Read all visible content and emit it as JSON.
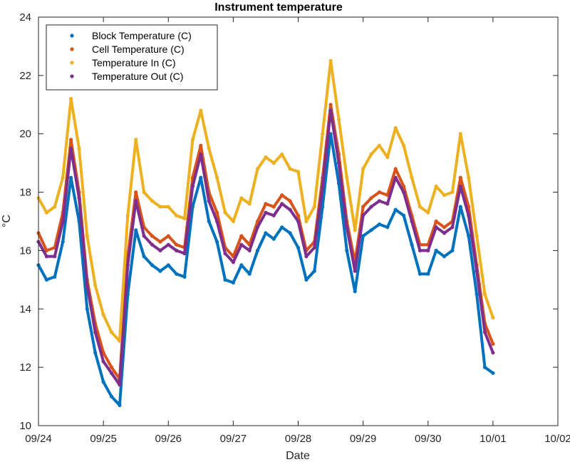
{
  "chart_data": {
    "type": "line",
    "title": "Instrument temperature",
    "xlabel": "Date",
    "ylabel": "°C",
    "xlim": [
      "09/24",
      "10/02"
    ],
    "ylim": [
      10,
      24
    ],
    "x_ticks": [
      "09/24",
      "09/25",
      "09/26",
      "09/27",
      "09/28",
      "09/29",
      "09/30",
      "10/01",
      "10/02"
    ],
    "y_ticks": [
      10,
      12,
      14,
      16,
      18,
      20,
      22,
      24
    ],
    "grid": false,
    "legend_position": "top-left",
    "x": [
      "09/24 00:00",
      "09/24 03:00",
      "09/24 06:00",
      "09/24 09:00",
      "09/24 12:00",
      "09/24 15:00",
      "09/24 18:00",
      "09/24 21:00",
      "09/25 00:00",
      "09/25 03:00",
      "09/25 06:00",
      "09/25 09:00",
      "09/25 12:00",
      "09/25 15:00",
      "09/25 18:00",
      "09/25 21:00",
      "09/26 00:00",
      "09/26 03:00",
      "09/26 06:00",
      "09/26 09:00",
      "09/26 12:00",
      "09/26 15:00",
      "09/26 18:00",
      "09/26 21:00",
      "09/27 00:00",
      "09/27 03:00",
      "09/27 06:00",
      "09/27 09:00",
      "09/27 12:00",
      "09/27 15:00",
      "09/27 18:00",
      "09/27 21:00",
      "09/28 00:00",
      "09/28 03:00",
      "09/28 06:00",
      "09/28 09:00",
      "09/28 12:00",
      "09/28 15:00",
      "09/28 18:00",
      "09/28 21:00",
      "09/29 00:00",
      "09/29 03:00",
      "09/29 06:00",
      "09/29 09:00",
      "09/29 12:00",
      "09/29 15:00",
      "09/29 18:00",
      "09/29 21:00",
      "09/30 00:00",
      "09/30 03:00",
      "09/30 06:00",
      "09/30 09:00",
      "09/30 12:00",
      "09/30 15:00",
      "09/30 18:00",
      "09/30 21:00",
      "10/01 00:00"
    ],
    "series": [
      {
        "name": "Block Temperature (C)",
        "color": "#0072BD",
        "values": [
          15.5,
          15.0,
          15.1,
          16.3,
          18.5,
          17.0,
          14.0,
          12.5,
          11.5,
          11.0,
          10.7,
          14.5,
          16.7,
          15.8,
          15.5,
          15.3,
          15.5,
          15.2,
          15.1,
          17.5,
          18.5,
          17.0,
          16.3,
          15.0,
          14.9,
          15.5,
          15.2,
          16.0,
          16.6,
          16.4,
          16.8,
          16.6,
          16.1,
          15.0,
          15.3,
          17.5,
          20.0,
          18.3,
          16.0,
          14.6,
          16.5,
          16.7,
          16.9,
          16.8,
          17.4,
          17.2,
          16.2,
          15.2,
          15.2,
          16.0,
          15.8,
          16.0,
          17.5,
          16.5,
          14.5,
          12.0,
          11.8
        ]
      },
      {
        "name": "Cell Temperature (C)",
        "color": "#D95319",
        "values": [
          16.6,
          16.0,
          16.1,
          17.3,
          19.8,
          18.0,
          15.0,
          13.5,
          12.5,
          12.0,
          11.6,
          15.8,
          18.0,
          16.8,
          16.5,
          16.3,
          16.5,
          16.2,
          16.1,
          18.5,
          19.6,
          18.0,
          17.3,
          16.1,
          15.8,
          16.5,
          16.2,
          17.0,
          17.6,
          17.5,
          17.9,
          17.7,
          17.2,
          16.0,
          16.3,
          18.5,
          21.0,
          19.3,
          17.0,
          15.6,
          17.5,
          17.8,
          18.0,
          17.9,
          18.8,
          18.2,
          17.2,
          16.2,
          16.2,
          17.0,
          16.8,
          17.0,
          18.5,
          17.5,
          15.5,
          13.5,
          12.8
        ]
      },
      {
        "name": "Temperature In (C)",
        "color": "#EDB120",
        "values": [
          17.8,
          17.3,
          17.5,
          18.5,
          21.2,
          19.5,
          16.5,
          14.8,
          13.8,
          13.2,
          12.9,
          17.2,
          19.8,
          18.0,
          17.7,
          17.5,
          17.5,
          17.2,
          17.1,
          19.8,
          20.8,
          19.5,
          18.5,
          17.3,
          17.0,
          17.8,
          17.6,
          18.8,
          19.2,
          19.0,
          19.3,
          18.8,
          18.7,
          17.0,
          17.5,
          20.0,
          22.5,
          20.5,
          18.5,
          16.7,
          18.8,
          19.3,
          19.6,
          19.2,
          20.2,
          19.6,
          18.5,
          17.5,
          17.3,
          18.2,
          17.9,
          18.0,
          20.0,
          18.5,
          16.5,
          14.5,
          13.7
        ]
      },
      {
        "name": "Temperature Out (C)",
        "color": "#7E2F8E",
        "values": [
          16.3,
          15.8,
          15.8,
          17.0,
          19.5,
          17.8,
          14.8,
          13.2,
          12.2,
          11.8,
          11.4,
          15.5,
          17.7,
          16.5,
          16.2,
          16.0,
          16.2,
          16.0,
          15.9,
          18.2,
          19.3,
          17.7,
          17.0,
          15.9,
          15.6,
          16.2,
          16.0,
          16.8,
          17.3,
          17.2,
          17.6,
          17.4,
          17.0,
          15.8,
          16.1,
          18.2,
          20.8,
          19.0,
          16.8,
          15.3,
          17.2,
          17.5,
          17.7,
          17.6,
          18.5,
          18.0,
          17.0,
          16.0,
          16.0,
          16.8,
          16.6,
          16.8,
          18.2,
          17.2,
          15.3,
          13.2,
          12.5
        ]
      }
    ]
  }
}
